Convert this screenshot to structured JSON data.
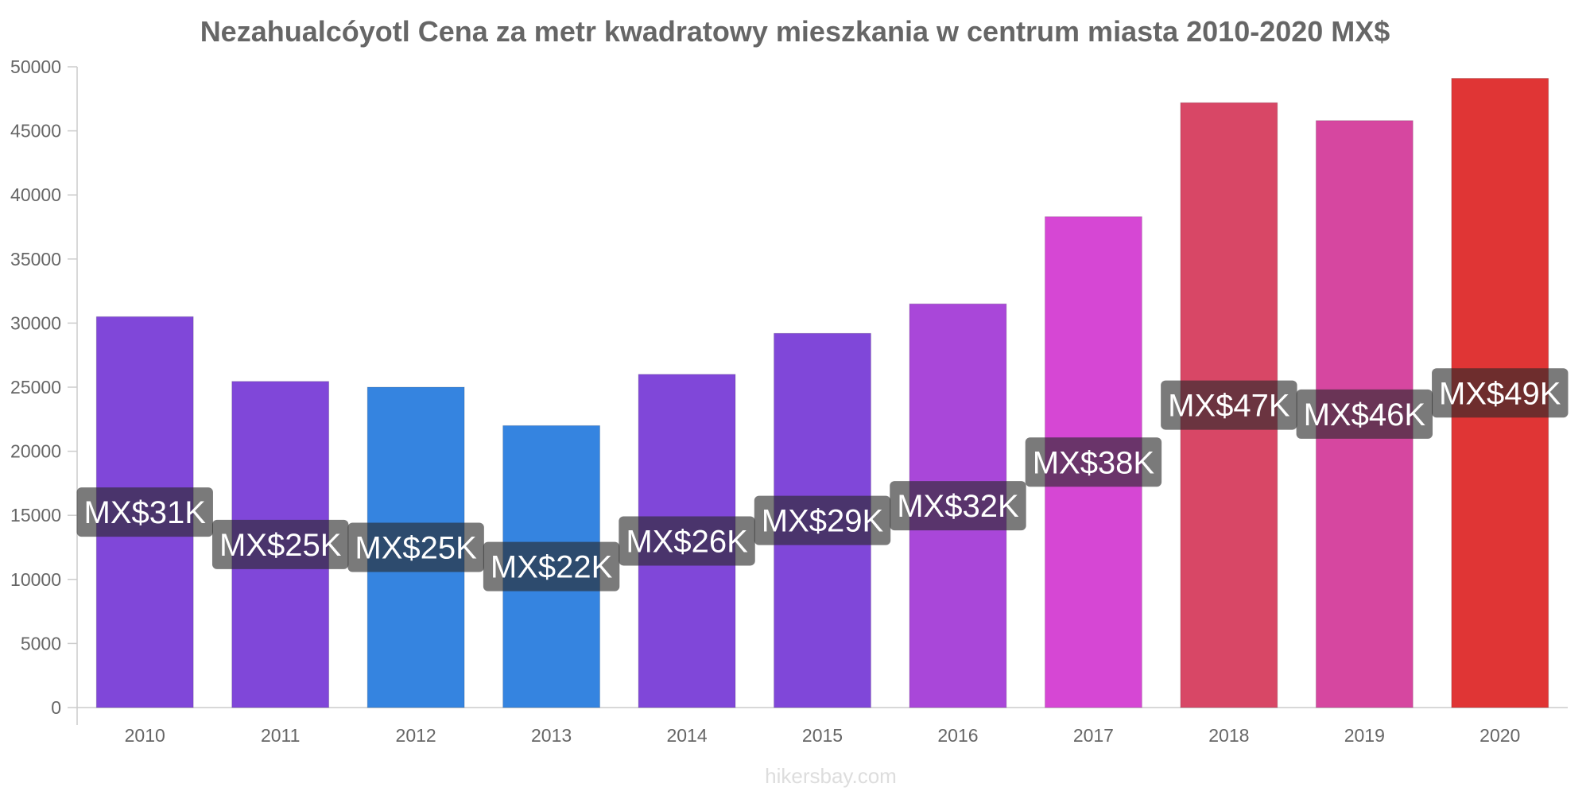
{
  "chart_data": {
    "type": "bar",
    "title": "Nezahualcóyotl Cena za metr kwadratowy mieszkania w centrum miasta 2010-2020 MX$",
    "xlabel": "",
    "ylabel": "",
    "categories": [
      "2010",
      "2011",
      "2012",
      "2013",
      "2014",
      "2015",
      "2016",
      "2017",
      "2018",
      "2019",
      "2020"
    ],
    "values": [
      30500,
      25450,
      25000,
      22000,
      26000,
      29200,
      31500,
      38300,
      47200,
      45800,
      49100
    ],
    "data_labels": [
      "MX$31K",
      "MX$25K",
      "MX$25K",
      "MX$22K",
      "MX$26K",
      "MX$29K",
      "MX$32K",
      "MX$38K",
      "MX$47K",
      "MX$46K",
      "MX$49K"
    ],
    "bar_colors": [
      "#8047d9",
      "#8047d9",
      "#3584e0",
      "#3584e0",
      "#8047d9",
      "#8047d9",
      "#a947d9",
      "#d647d4",
      "#d84766",
      "#d647a0",
      "#e03535"
    ],
    "ylim": [
      0,
      50000
    ],
    "yticks": [
      0,
      5000,
      10000,
      15000,
      20000,
      25000,
      30000,
      35000,
      40000,
      45000,
      50000
    ],
    "grid": false,
    "legend": "none"
  },
  "watermark": "hikersbay.com"
}
